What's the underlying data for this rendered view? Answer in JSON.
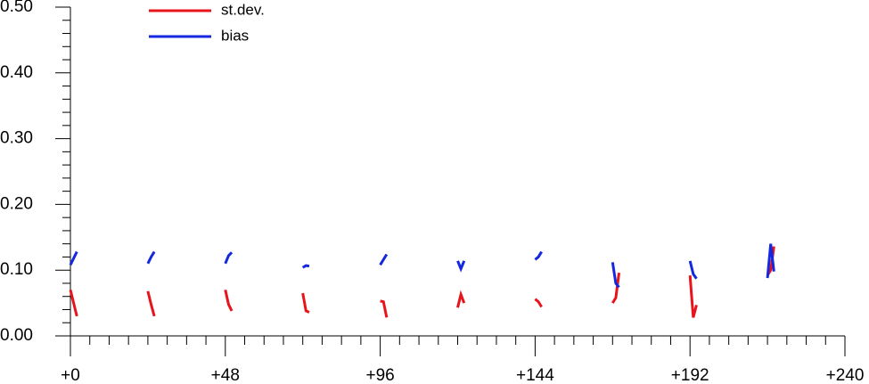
{
  "chart_data": {
    "type": "line",
    "x": [
      0,
      1,
      2,
      12,
      24,
      25,
      26,
      36,
      48,
      49,
      50,
      60,
      72,
      73,
      74,
      84,
      96,
      97,
      98,
      108,
      120,
      121,
      122,
      132,
      144,
      145,
      146,
      156,
      168,
      169,
      170,
      180,
      192,
      193,
      194,
      204,
      216,
      217,
      218
    ],
    "series": [
      {
        "name": "st.dev.",
        "color": "#e8141c",
        "values": [
          0.07,
          0.05,
          0.03,
          null,
          0.068,
          0.048,
          0.03,
          null,
          0.07,
          0.048,
          0.038,
          null,
          0.065,
          0.038,
          0.036,
          null,
          0.053,
          0.052,
          0.028,
          null,
          0.043,
          0.063,
          0.05,
          null,
          0.056,
          0.052,
          0.044,
          null,
          0.05,
          0.058,
          0.096,
          null,
          0.092,
          0.028,
          0.047,
          null,
          0.092,
          0.1,
          0.136
        ]
      },
      {
        "name": "bias",
        "color": "#1428e0",
        "values": [
          0.108,
          0.118,
          0.128,
          null,
          0.11,
          0.12,
          0.128,
          null,
          0.11,
          0.122,
          0.127,
          null,
          0.104,
          0.107,
          0.106,
          null,
          0.108,
          0.116,
          0.124,
          null,
          0.114,
          0.102,
          0.114,
          null,
          0.116,
          0.12,
          0.128,
          null,
          0.112,
          0.08,
          0.074,
          null,
          0.114,
          0.094,
          0.087,
          null,
          0.088,
          0.14,
          0.098
        ]
      }
    ],
    "xlim": [
      0,
      240
    ],
    "xticks": [
      {
        "value": 0,
        "label": "+0"
      },
      {
        "value": 48,
        "label": "+48"
      },
      {
        "value": 96,
        "label": "+96"
      },
      {
        "value": 144,
        "label": "+144"
      },
      {
        "value": 192,
        "label": "+192"
      },
      {
        "value": 240,
        "label": "+240"
      }
    ],
    "xminorticks": [
      6,
      12,
      18,
      24,
      30,
      36,
      42,
      54,
      60,
      66,
      72,
      78,
      84,
      90,
      102,
      108,
      114,
      120,
      126,
      132,
      138,
      150,
      156,
      162,
      168,
      174,
      180,
      186,
      198,
      204,
      210,
      216,
      222,
      228,
      234
    ],
    "ylim": [
      0,
      0.5
    ],
    "yticks": [
      {
        "value": 0,
        "label": "0.00"
      },
      {
        "value": 0.1,
        "label": "0.10"
      },
      {
        "value": 0.2,
        "label": "0.20"
      },
      {
        "value": 0.3,
        "label": "0.30"
      },
      {
        "value": 0.4,
        "label": "0.40"
      },
      {
        "value": 0.5,
        "label": "0.50"
      }
    ],
    "yminorticks": [
      0.02,
      0.04,
      0.06,
      0.08,
      0.12,
      0.14,
      0.16,
      0.18,
      0.22,
      0.24,
      0.26,
      0.28,
      0.32,
      0.34,
      0.36,
      0.38,
      0.42,
      0.44,
      0.46,
      0.48
    ]
  }
}
